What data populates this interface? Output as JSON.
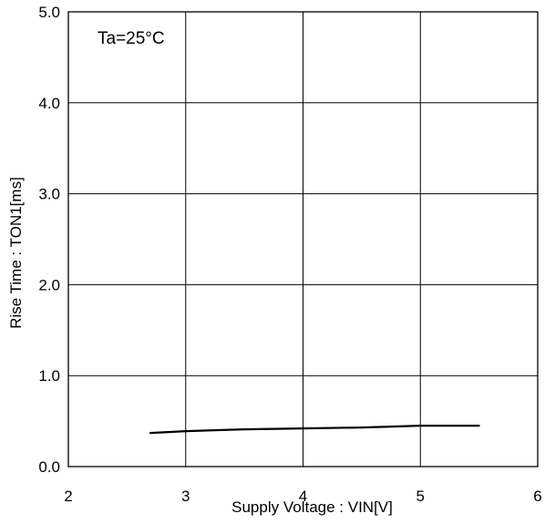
{
  "chart_data": {
    "type": "line",
    "annotation": "Ta=25°C",
    "xlabel": "Supply Voltage : VIN[V]",
    "ylabel": "Rise Time : TON1[ms]",
    "xlim": [
      2,
      6
    ],
    "ylim": [
      0.0,
      5.0
    ],
    "x_ticks": [
      "2",
      "3",
      "4",
      "5",
      "6"
    ],
    "y_ticks": [
      "0.0",
      "1.0",
      "2.0",
      "3.0",
      "4.0",
      "5.0"
    ],
    "grid": true,
    "colors": {
      "line": "#000000",
      "grid": "#000000",
      "background": "#ffffff"
    },
    "series": [
      {
        "x": [
          2.7,
          3.0,
          3.5,
          4.0,
          4.5,
          5.0,
          5.5
        ],
        "y": [
          0.37,
          0.39,
          0.41,
          0.42,
          0.43,
          0.45,
          0.45
        ]
      }
    ]
  }
}
